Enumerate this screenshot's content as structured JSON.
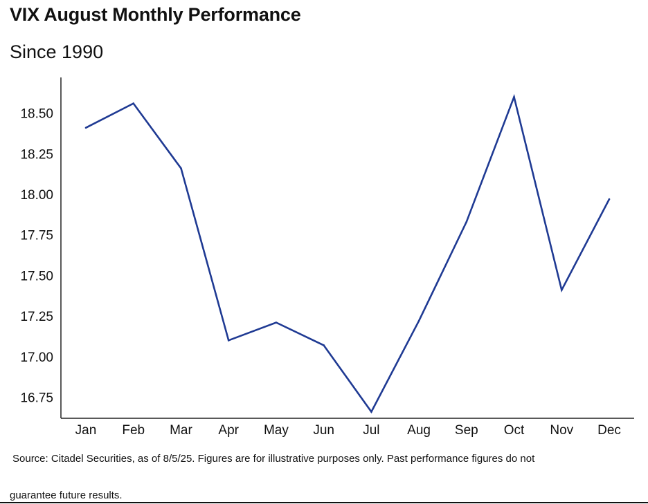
{
  "title": "VIX August Monthly Performance",
  "subtitle": "Since 1990",
  "source_line1": "Source: Citadel Securities, as of 8/5/25. Figures are for illustrative purposes only. Past performance figures do not",
  "source_line2": "guarantee future results.",
  "colors": {
    "line": "#1f3a93",
    "axis": "#222222",
    "text": "#111111"
  },
  "chart_data": {
    "type": "line",
    "title": "VIX August Monthly Performance",
    "subtitle": "Since 1990",
    "xlabel": "",
    "ylabel": "",
    "categories": [
      "Jan",
      "Feb",
      "Mar",
      "Apr",
      "May",
      "Jun",
      "Jul",
      "Aug",
      "Sep",
      "Oct",
      "Nov",
      "Dec"
    ],
    "values": [
      18.41,
      18.56,
      18.16,
      17.1,
      17.21,
      17.07,
      16.66,
      17.22,
      17.83,
      18.6,
      17.41,
      17.97
    ],
    "ylim": [
      16.62,
      18.72
    ],
    "yticks": [
      16.75,
      17.0,
      17.25,
      17.5,
      17.75,
      18.0,
      18.25,
      18.5
    ],
    "ytick_labels": [
      "16.75",
      "17.00",
      "17.25",
      "17.50",
      "17.75",
      "18.00",
      "18.25",
      "18.50"
    ],
    "grid": false,
    "legend": "none"
  }
}
